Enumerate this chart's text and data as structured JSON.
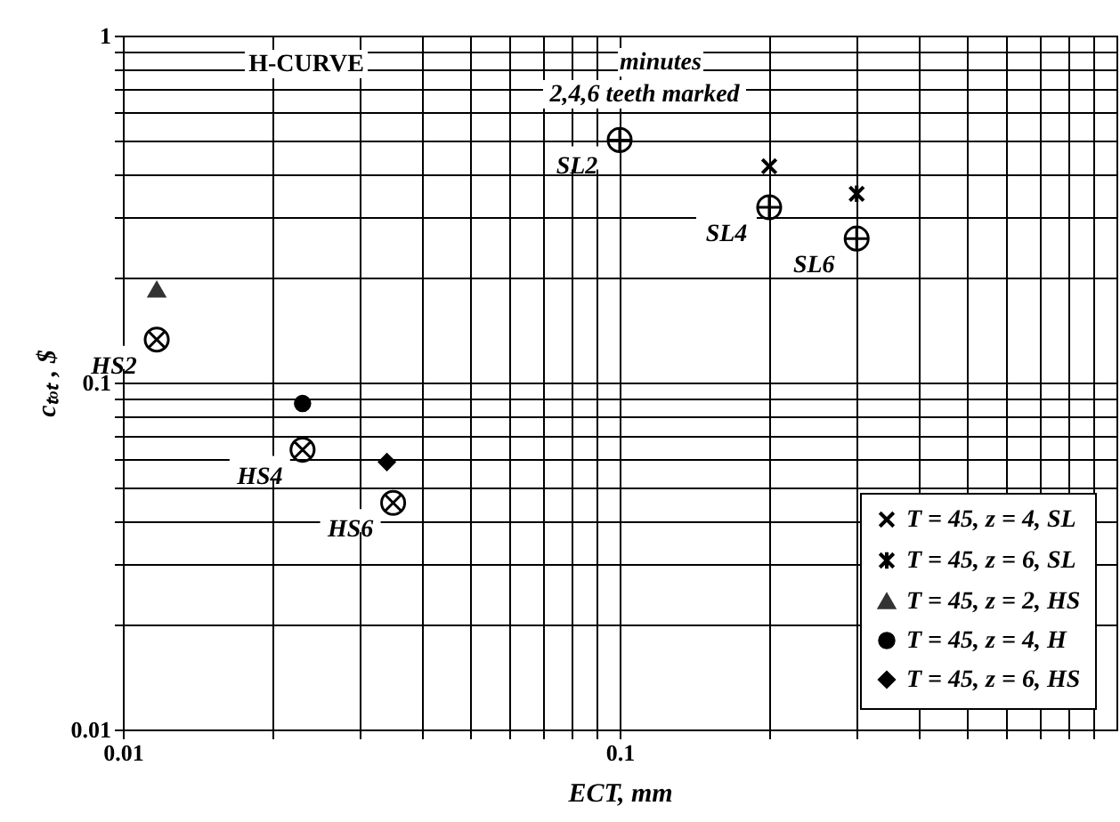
{
  "chart_data": {
    "type": "scatter",
    "xlabel": "ECT, mm",
    "ylabel": "cₜₒₜ , $",
    "annotations": [
      "H-CURVE",
      "minutes",
      "2,4,6 teeth marked"
    ],
    "log": "xy",
    "grid": true,
    "legend": "bottom right",
    "xlim": [
      0.01,
      1
    ],
    "ylim": [
      0.01,
      1
    ],
    "xticks": [
      0.01,
      {
        "value": 0.02,
        "label": null
      },
      {
        "value": 0.03,
        "label": null
      },
      {
        "value": 0.04,
        "label": null
      },
      {
        "value": 0.05,
        "label": null
      },
      {
        "value": 0.06,
        "label": null
      },
      {
        "value": 0.07,
        "label": null
      },
      {
        "value": 0.08,
        "label": null
      },
      {
        "value": 0.09,
        "label": null
      },
      0.1,
      {
        "value": 0.2,
        "label": null
      },
      {
        "value": 0.3,
        "label": null
      },
      {
        "value": 0.4,
        "label": null
      },
      {
        "value": 0.5,
        "label": null
      },
      {
        "value": 0.6,
        "label": null
      },
      {
        "value": 0.7,
        "label": null
      },
      {
        "value": 0.8,
        "label": null
      },
      {
        "value": 0.9,
        "label": null
      }
    ],
    "yticks": [
      0.01,
      {
        "value": 0.02,
        "label": null
      },
      {
        "value": 0.03,
        "label": null
      },
      {
        "value": 0.04,
        "label": null
      },
      {
        "value": 0.05,
        "label": null
      },
      {
        "value": 0.06,
        "label": null
      },
      {
        "value": 0.07,
        "label": null
      },
      {
        "value": 0.08,
        "label": null
      },
      {
        "value": 0.09,
        "label": null
      },
      0.1,
      {
        "value": 0.2,
        "label": null
      },
      {
        "value": 0.3,
        "label": null
      },
      {
        "value": 0.4,
        "label": null
      },
      {
        "value": 0.5,
        "label": null
      },
      {
        "value": 0.6,
        "label": null
      },
      {
        "value": 0.7,
        "label": null
      },
      {
        "value": 0.8,
        "label": null
      },
      {
        "value": 0.9,
        "label": null
      },
      1
    ],
    "series": [
      {
        "name": "T = 45, z = 4, SL",
        "color": "#000000",
        "marker": "cross",
        "x": [
          0.2
        ],
        "values": [
          0.42
        ]
      },
      {
        "name": "T = 45, z = 6, SL",
        "color": "#000000",
        "marker": "cross",
        "x": [
          0.3
        ],
        "values": [
          0.35
        ]
      },
      {
        "name": "T = 45, z = 2, HS",
        "color": "#333333",
        "marker": "triangle",
        "x": [
          0.0117
        ],
        "values": [
          0.185
        ]
      },
      {
        "name": "T = 45, z = 4, H",
        "color": "#000000",
        "marker": "circle",
        "x": [
          0.023
        ],
        "values": [
          0.087
        ]
      },
      {
        "name": "T = 45, z = 6, HS",
        "color": "#000000",
        "marker": "diamond",
        "x": [
          0.034
        ],
        "values": [
          0.059
        ]
      },
      {
        "color": "#000000",
        "marker": "cross",
        "x": [
          0.1,
          0.2,
          0.3
        ],
        "values": [
          0.5,
          0.32,
          0.26
        ],
        "value_labels": [
          "SL2",
          "SL4",
          "SL6"
        ]
      },
      {
        "color": "#000000",
        "marker": "cross",
        "x": [
          0.0117,
          0.023,
          0.035
        ],
        "values": [
          0.133,
          0.064,
          0.045
        ],
        "value_labels": [
          "HS2",
          "HS4",
          "HS6"
        ]
      }
    ]
  }
}
